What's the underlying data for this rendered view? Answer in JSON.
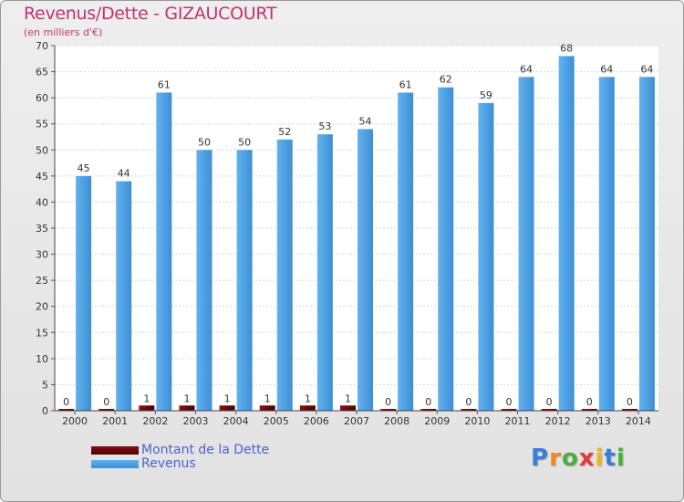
{
  "chart_data": {
    "type": "bar",
    "title": "Revenus/Dette - GIZAUCOURT",
    "subtitle": "(en milliers d'€)",
    "categories": [
      "2000",
      "2001",
      "2002",
      "2003",
      "2004",
      "2005",
      "2006",
      "2007",
      "2008",
      "2009",
      "2010",
      "2011",
      "2012",
      "2013",
      "2014"
    ],
    "series": [
      {
        "name": "Montant de la Dette",
        "color": "#6b0000",
        "values": [
          0,
          0,
          1,
          1,
          1,
          1,
          1,
          1,
          0,
          0,
          0,
          0,
          0,
          0,
          0
        ]
      },
      {
        "name": "Revenus",
        "color": "#4fa3e6",
        "values": [
          45,
          44,
          61,
          50,
          50,
          52,
          53,
          54,
          61,
          62,
          59,
          64,
          68,
          64,
          64
        ]
      }
    ],
    "ylim": [
      0,
      70
    ],
    "yticks": [
      0,
      5,
      10,
      15,
      20,
      25,
      30,
      35,
      40,
      45,
      50,
      55,
      60,
      65,
      70
    ],
    "grid": true,
    "legend_position": "bottom-left"
  },
  "logo": {
    "letters": [
      "P",
      "r",
      "o",
      "x",
      "i",
      "t",
      "i"
    ],
    "colors": [
      "#3a7fd6",
      "#f08a1c",
      "#4caf3c",
      "#e43a3a",
      "#f0b61c",
      "#3a7fd6",
      "#4caf3c"
    ]
  }
}
